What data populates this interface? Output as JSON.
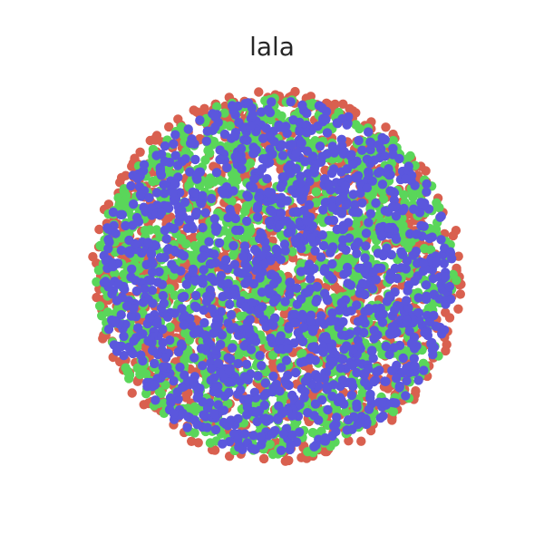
{
  "chart_data": {
    "type": "scatter",
    "title": "lala",
    "xlabel": "",
    "ylabel": "",
    "axes_visible": false,
    "grid": false,
    "legend": "none",
    "xlim": [
      -1.1,
      1.1
    ],
    "ylim": [
      -1.1,
      1.1
    ],
    "points_per_series": 1400,
    "series": [
      {
        "color": "#d9604f",
        "distribution": "uniform-disc",
        "radius": 1.0
      },
      {
        "color": "#5ad65a",
        "distribution": "uniform-disc",
        "radius": 0.97
      },
      {
        "color": "#5b57dd",
        "distribution": "uniform-disc",
        "radius": 0.95
      }
    ]
  }
}
